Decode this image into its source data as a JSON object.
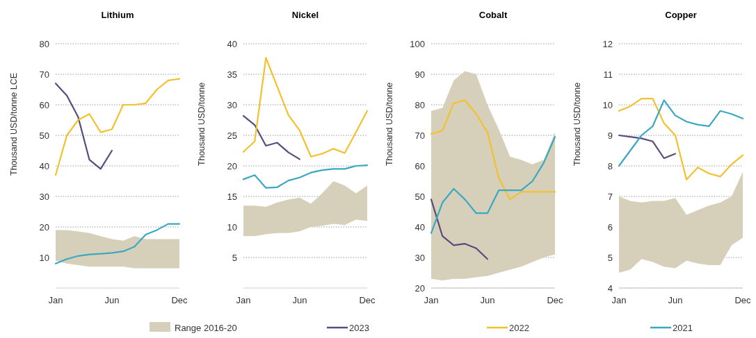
{
  "chart_data": [
    {
      "type": "line",
      "title": "Lithium",
      "ylabel": "Thousand USD/tonne LCE",
      "categories": [
        "Jan",
        null,
        null,
        null,
        null,
        "Jun",
        null,
        null,
        null,
        null,
        null,
        "Dec"
      ],
      "ylim": [
        0,
        80
      ],
      "yticks": [
        10,
        20,
        30,
        40,
        50,
        60,
        70,
        80
      ],
      "grid": "y",
      "legend": "bottom",
      "series": [
        {
          "name": "Range 2016-20",
          "type": "area",
          "color": "#d6d0bb",
          "values": [
            null,
            null,
            null,
            null,
            null,
            null,
            null,
            null,
            null,
            null,
            null,
            null
          ],
          "upper": [
            19,
            19,
            18.5,
            18,
            17,
            16,
            15.5,
            17,
            16,
            16,
            16,
            16
          ],
          "lower": [
            9,
            8,
            7.5,
            7,
            7,
            7,
            7,
            6.5,
            6.5,
            6.5,
            6.5,
            6.5
          ]
        },
        {
          "name": "2023",
          "color": "#5b4a7e",
          "values": [
            67,
            63,
            56,
            42,
            39,
            45,
            null,
            null,
            null,
            null,
            null,
            null
          ]
        },
        {
          "name": "2022",
          "color": "#f2c12e",
          "values": [
            37,
            50,
            55,
            57,
            51,
            52,
            60,
            60,
            60.5,
            65,
            68,
            68.5
          ]
        },
        {
          "name": "2021",
          "color": "#3aa8c1",
          "values": [
            8,
            9.5,
            10.5,
            11,
            11.2,
            11.5,
            12,
            13.5,
            17.5,
            19,
            21,
            21
          ]
        }
      ]
    },
    {
      "type": "line",
      "title": "Nickel",
      "ylabel": "Thousand USD/tonne",
      "categories": [
        "Jan",
        null,
        null,
        null,
        null,
        "Jun",
        null,
        null,
        null,
        null,
        null,
        "Dec"
      ],
      "ylim": [
        0,
        40
      ],
      "yticks": [
        5,
        10,
        15,
        20,
        25,
        30,
        35,
        40
      ],
      "grid": "y",
      "series": [
        {
          "type": "area",
          "color": "#d6d0bb",
          "values": [
            null,
            null,
            null,
            null,
            null,
            null,
            null,
            null,
            null,
            null,
            null,
            null
          ],
          "upper": [
            13.5,
            13.5,
            13.3,
            14,
            14.5,
            14.8,
            13.8,
            15.5,
            17.5,
            16.8,
            15.5,
            16.8
          ],
          "lower": [
            8.5,
            8.5,
            8.8,
            9,
            9,
            9.3,
            10,
            10.2,
            10.5,
            10.3,
            11.2,
            11
          ]
        },
        {
          "color": "#5b4a7e",
          "values": [
            28.2,
            26.7,
            23.3,
            23.8,
            22.2,
            21.1,
            null,
            null,
            null,
            null,
            null,
            null
          ]
        },
        {
          "color": "#f2c12e",
          "values": [
            22.3,
            24,
            37.7,
            33,
            28.3,
            25.8,
            21.5,
            22,
            22.8,
            22.1,
            25.5,
            29
          ]
        },
        {
          "color": "#3aa8c1",
          "values": [
            17.8,
            18.5,
            16.4,
            16.5,
            17.6,
            18.1,
            18.9,
            19.3,
            19.5,
            19.5,
            20,
            20.1
          ]
        }
      ]
    },
    {
      "type": "line",
      "title": "Cobalt",
      "ylabel": "Thousand USD/tonne",
      "categories": [
        "Jan",
        null,
        null,
        null,
        null,
        "Jun",
        null,
        null,
        null,
        null,
        null,
        "Dec"
      ],
      "ylim": [
        20,
        100
      ],
      "yticks": [
        20,
        30,
        40,
        50,
        60,
        70,
        80,
        90,
        100
      ],
      "grid": "y",
      "series": [
        {
          "type": "area",
          "color": "#d6d0bb",
          "values": [
            null,
            null,
            null,
            null,
            null,
            null,
            null,
            null,
            null,
            null,
            null,
            null
          ],
          "upper": [
            78,
            79,
            88,
            91,
            90,
            80,
            72,
            63,
            62,
            60.5,
            62,
            71
          ],
          "lower": [
            23,
            22.5,
            23,
            23,
            23.5,
            24,
            25,
            26,
            27,
            28.5,
            30,
            31
          ]
        },
        {
          "color": "#5b4a7e",
          "values": [
            49,
            37,
            34,
            34.5,
            33,
            29.5,
            null,
            null,
            null,
            null,
            null,
            null
          ]
        },
        {
          "color": "#f2c12e",
          "values": [
            70.5,
            71.5,
            80.5,
            81.5,
            77,
            71,
            56,
            49,
            51.5,
            51.5,
            51.5,
            51.5
          ]
        },
        {
          "color": "#3aa8c1",
          "values": [
            38,
            48,
            52.5,
            49,
            44.5,
            44.5,
            52,
            52,
            52,
            55,
            61,
            69.5
          ]
        }
      ]
    },
    {
      "type": "line",
      "title": "Copper",
      "ylabel": "Thousand USD/tonne",
      "categories": [
        "Jan",
        null,
        null,
        null,
        null,
        "Jun",
        null,
        null,
        null,
        null,
        null,
        "Dec"
      ],
      "ylim": [
        4,
        12
      ],
      "yticks": [
        4,
        5,
        6,
        7,
        8,
        9,
        10,
        11,
        12
      ],
      "grid": "y",
      "series": [
        {
          "type": "area",
          "color": "#d6d0bb",
          "values": [
            null,
            null,
            null,
            null,
            null,
            null,
            null,
            null,
            null,
            null,
            null,
            null
          ],
          "upper": [
            7,
            6.85,
            6.8,
            6.85,
            6.85,
            6.95,
            6.4,
            6.55,
            6.7,
            6.8,
            7,
            7.8
          ],
          "lower": [
            4.5,
            4.6,
            4.95,
            4.85,
            4.7,
            4.65,
            4.9,
            4.8,
            4.75,
            4.75,
            5.4,
            5.65
          ]
        },
        {
          "color": "#5b4a7e",
          "values": [
            9,
            8.95,
            8.9,
            8.8,
            8.25,
            8.4,
            null,
            null,
            null,
            null,
            null,
            null
          ]
        },
        {
          "color": "#f2c12e",
          "values": [
            9.8,
            9.95,
            10.2,
            10.2,
            9.4,
            9,
            7.55,
            7.95,
            7.75,
            7.65,
            8.05,
            8.35
          ]
        },
        {
          "color": "#3aa8c1",
          "values": [
            8,
            8.5,
            9,
            9.3,
            10.15,
            9.65,
            9.45,
            9.35,
            9.3,
            9.8,
            9.7,
            9.55
          ]
        }
      ]
    }
  ]
}
